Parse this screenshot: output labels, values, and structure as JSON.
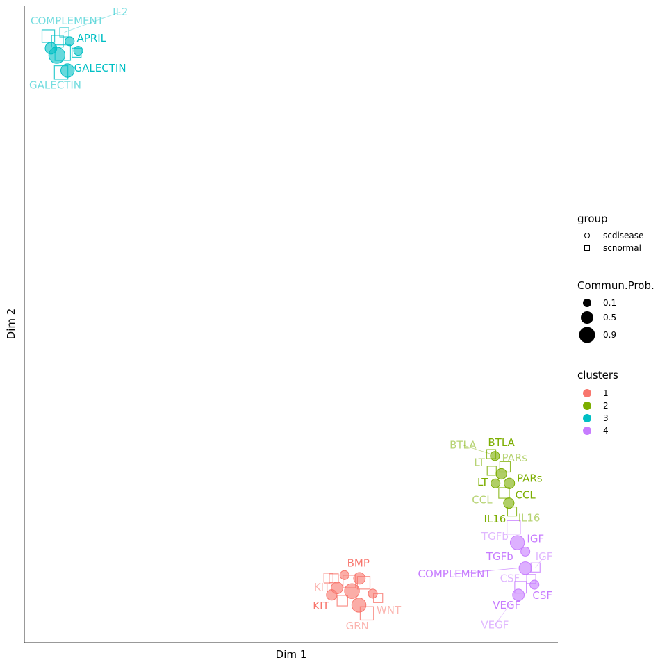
{
  "chart_data": {
    "type": "scatter",
    "xlabel": "Dim 1",
    "ylabel": "Dim 2",
    "xlim": [
      0,
      100
    ],
    "ylim": [
      0,
      100
    ],
    "grid": false,
    "colors": {
      "1": "#F8766D",
      "2": "#7CAE00",
      "3": "#00BFC4",
      "4": "#C77CFF"
    },
    "legend": {
      "placement": "right",
      "group": {
        "title": "group",
        "items": [
          {
            "label": "scdisease",
            "shape": "circle"
          },
          {
            "label": "scnormal",
            "shape": "square"
          }
        ]
      },
      "size": {
        "title": "Commun.Prob.",
        "items": [
          {
            "label": "0.1",
            "value": 0.1
          },
          {
            "label": "0.5",
            "value": 0.5
          },
          {
            "label": "0.9",
            "value": 0.9
          }
        ]
      },
      "clusters": {
        "title": "clusters",
        "items": [
          {
            "label": "1",
            "cluster": "1"
          },
          {
            "label": "2",
            "cluster": "2"
          },
          {
            "label": "3",
            "cluster": "3"
          },
          {
            "label": "4",
            "cluster": "4"
          }
        ]
      }
    },
    "points": [
      {
        "x": 4.5,
        "y": 95.2,
        "cluster": "3",
        "group": "scnormal",
        "size": 0.4
      },
      {
        "x": 6.2,
        "y": 94.4,
        "cluster": "3",
        "group": "scnormal",
        "size": 0.3
      },
      {
        "x": 7.5,
        "y": 95.8,
        "cluster": "3",
        "group": "scnormal",
        "size": 0.1
      },
      {
        "x": 8.5,
        "y": 94.4,
        "cluster": "3",
        "group": "scdisease",
        "size": 0.1
      },
      {
        "x": 5.0,
        "y": 93.3,
        "cluster": "3",
        "group": "scdisease",
        "size": 0.3
      },
      {
        "x": 6.1,
        "y": 92.2,
        "cluster": "3",
        "group": "scdisease",
        "size": 0.9
      },
      {
        "x": 7.2,
        "y": 92.6,
        "cluster": "3",
        "group": "scnormal",
        "size": 0.8
      },
      {
        "x": 10.1,
        "y": 92.9,
        "cluster": "3",
        "group": "scdisease",
        "size": 0.1
      },
      {
        "x": 9.8,
        "y": 92.6,
        "cluster": "3",
        "group": "scnormal",
        "size": 0.1
      },
      {
        "x": 8.1,
        "y": 89.8,
        "cluster": "3",
        "group": "scdisease",
        "size": 0.5
      },
      {
        "x": 6.9,
        "y": 89.5,
        "cluster": "3",
        "group": "scnormal",
        "size": 0.5
      },
      {
        "x": 60.0,
        "y": 10.6,
        "cluster": "1",
        "group": "scdisease",
        "size": 0.1
      },
      {
        "x": 57.0,
        "y": 10.2,
        "cluster": "1",
        "group": "scnormal",
        "size": 0.1
      },
      {
        "x": 58.0,
        "y": 10.1,
        "cluster": "1",
        "group": "scnormal",
        "size": 0.1
      },
      {
        "x": 62.8,
        "y": 10.1,
        "cluster": "1",
        "group": "scdisease",
        "size": 0.3
      },
      {
        "x": 60.9,
        "y": 9.6,
        "cluster": "1",
        "group": "scnormal",
        "size": 0.4
      },
      {
        "x": 63.6,
        "y": 9.4,
        "cluster": "1",
        "group": "scnormal",
        "size": 0.4
      },
      {
        "x": 58.6,
        "y": 8.6,
        "cluster": "1",
        "group": "scdisease",
        "size": 0.3
      },
      {
        "x": 61.4,
        "y": 8.1,
        "cluster": "1",
        "group": "scdisease",
        "size": 0.7
      },
      {
        "x": 57.6,
        "y": 7.5,
        "cluster": "1",
        "group": "scdisease",
        "size": 0.2
      },
      {
        "x": 59.6,
        "y": 6.6,
        "cluster": "1",
        "group": "scnormal",
        "size": 0.2
      },
      {
        "x": 65.3,
        "y": 7.7,
        "cluster": "1",
        "group": "scdisease",
        "size": 0.1
      },
      {
        "x": 66.3,
        "y": 7.0,
        "cluster": "1",
        "group": "scnormal",
        "size": 0.1
      },
      {
        "x": 62.7,
        "y": 5.9,
        "cluster": "1",
        "group": "scdisease",
        "size": 0.6
      },
      {
        "x": 64.2,
        "y": 4.6,
        "cluster": "1",
        "group": "scnormal",
        "size": 0.5
      },
      {
        "x": 87.5,
        "y": 29.6,
        "cluster": "2",
        "group": "scnormal",
        "size": 0.1
      },
      {
        "x": 88.2,
        "y": 29.3,
        "cluster": "2",
        "group": "scdisease",
        "size": 0.1
      },
      {
        "x": 90.1,
        "y": 27.6,
        "cluster": "2",
        "group": "scnormal",
        "size": 0.2
      },
      {
        "x": 87.6,
        "y": 27.0,
        "cluster": "2",
        "group": "scnormal",
        "size": 0.1
      },
      {
        "x": 89.4,
        "y": 26.5,
        "cluster": "2",
        "group": "scdisease",
        "size": 0.2
      },
      {
        "x": 88.3,
        "y": 25.0,
        "cluster": "2",
        "group": "scdisease",
        "size": 0.1
      },
      {
        "x": 90.9,
        "y": 25.0,
        "cluster": "2",
        "group": "scdisease",
        "size": 0.2
      },
      {
        "x": 89.9,
        "y": 23.5,
        "cluster": "2",
        "group": "scnormal",
        "size": 0.2
      },
      {
        "x": 90.8,
        "y": 21.9,
        "cluster": "2",
        "group": "scdisease",
        "size": 0.2
      },
      {
        "x": 91.4,
        "y": 20.6,
        "cluster": "2",
        "group": "scnormal",
        "size": 0.1
      },
      {
        "x": 91.7,
        "y": 18.1,
        "cluster": "4",
        "group": "scnormal",
        "size": 0.5
      },
      {
        "x": 92.4,
        "y": 15.7,
        "cluster": "4",
        "group": "scdisease",
        "size": 0.6
      },
      {
        "x": 93.9,
        "y": 14.3,
        "cluster": "4",
        "group": "scdisease",
        "size": 0.1
      },
      {
        "x": 93.9,
        "y": 11.7,
        "cluster": "4",
        "group": "scdisease",
        "size": 0.4
      },
      {
        "x": 95.8,
        "y": 11.8,
        "cluster": "4",
        "group": "scnormal",
        "size": 0.1
      },
      {
        "x": 95.0,
        "y": 10.0,
        "cluster": "4",
        "group": "scnormal",
        "size": 0.1
      },
      {
        "x": 93.0,
        "y": 8.7,
        "cluster": "4",
        "group": "scnormal",
        "size": 0.3
      },
      {
        "x": 95.6,
        "y": 9.1,
        "cluster": "4",
        "group": "scdisease",
        "size": 0.1
      },
      {
        "x": 92.6,
        "y": 7.5,
        "cluster": "4",
        "group": "scdisease",
        "size": 0.3
      }
    ],
    "labels": [
      {
        "text": "IL2",
        "x": 18.0,
        "y": 99.0,
        "cluster": "3",
        "group": "scnormal",
        "leader": [
          7.5,
          95.8
        ]
      },
      {
        "text": "COMPLEMENT",
        "x": 8.0,
        "y": 97.6,
        "cluster": "3",
        "group": "scnormal"
      },
      {
        "text": "APRIL",
        "x": 12.6,
        "y": 94.9,
        "cluster": "3",
        "group": "scdisease"
      },
      {
        "text": "GALECTIN",
        "x": 14.2,
        "y": 90.2,
        "cluster": "3",
        "group": "scdisease"
      },
      {
        "text": "GALECTIN",
        "x": 5.8,
        "y": 87.5,
        "cluster": "3",
        "group": "scnormal"
      },
      {
        "text": "BMP",
        "x": 62.6,
        "y": 12.5,
        "cluster": "1",
        "group": "scdisease"
      },
      {
        "text": "KIT",
        "x": 55.8,
        "y": 8.7,
        "cluster": "1",
        "group": "scnormal"
      },
      {
        "text": "KIT",
        "x": 55.6,
        "y": 5.8,
        "cluster": "1",
        "group": "scdisease"
      },
      {
        "text": "WNT",
        "x": 68.3,
        "y": 5.1,
        "cluster": "1",
        "group": "scnormal"
      },
      {
        "text": "GRN",
        "x": 62.4,
        "y": 2.6,
        "cluster": "1",
        "group": "scnormal"
      },
      {
        "text": "BTLA",
        "x": 82.2,
        "y": 31.0,
        "cluster": "2",
        "group": "scnormal",
        "leader": [
          87.5,
          29.6
        ]
      },
      {
        "text": "BTLA",
        "x": 89.4,
        "y": 31.4,
        "cluster": "2",
        "group": "scdisease"
      },
      {
        "text": "PARs",
        "x": 91.9,
        "y": 29.0,
        "cluster": "2",
        "group": "scnormal"
      },
      {
        "text": "LT",
        "x": 85.3,
        "y": 28.3,
        "cluster": "2",
        "group": "scnormal"
      },
      {
        "text": "PARs",
        "x": 94.7,
        "y": 25.8,
        "cluster": "2",
        "group": "scdisease"
      },
      {
        "text": "LT",
        "x": 85.9,
        "y": 25.2,
        "cluster": "2",
        "group": "scdisease"
      },
      {
        "text": "CCL",
        "x": 93.9,
        "y": 23.2,
        "cluster": "2",
        "group": "scdisease"
      },
      {
        "text": "CCL",
        "x": 85.8,
        "y": 22.4,
        "cluster": "2",
        "group": "scnormal"
      },
      {
        "text": "IL16",
        "x": 88.2,
        "y": 19.4,
        "cluster": "2",
        "group": "scdisease"
      },
      {
        "text": "IL16",
        "x": 94.6,
        "y": 19.6,
        "cluster": "2",
        "group": "scnormal"
      },
      {
        "text": "TGFb",
        "x": 88.2,
        "y": 16.7,
        "cluster": "4",
        "group": "scnormal"
      },
      {
        "text": "IGF",
        "x": 95.8,
        "y": 16.3,
        "cluster": "4",
        "group": "scdisease"
      },
      {
        "text": "TGFb",
        "x": 89.1,
        "y": 13.5,
        "cluster": "4",
        "group": "scdisease"
      },
      {
        "text": "IGF",
        "x": 97.4,
        "y": 13.5,
        "cluster": "4",
        "group": "scnormal",
        "leader": [
          95.8,
          11.8
        ]
      },
      {
        "text": "COMPLEMENT",
        "x": 80.6,
        "y": 10.8,
        "cluster": "4",
        "group": "scdisease",
        "leader": [
          92.4,
          11.7
        ]
      },
      {
        "text": "CSF",
        "x": 91.0,
        "y": 10.1,
        "cluster": "4",
        "group": "scnormal"
      },
      {
        "text": "CSF",
        "x": 97.1,
        "y": 7.4,
        "cluster": "4",
        "group": "scdisease"
      },
      {
        "text": "VEGF",
        "x": 90.4,
        "y": 5.9,
        "cluster": "4",
        "group": "scdisease"
      },
      {
        "text": "VEGF",
        "x": 88.2,
        "y": 2.8,
        "cluster": "4",
        "group": "scnormal",
        "leader": [
          91.4,
          6.5
        ]
      }
    ]
  }
}
